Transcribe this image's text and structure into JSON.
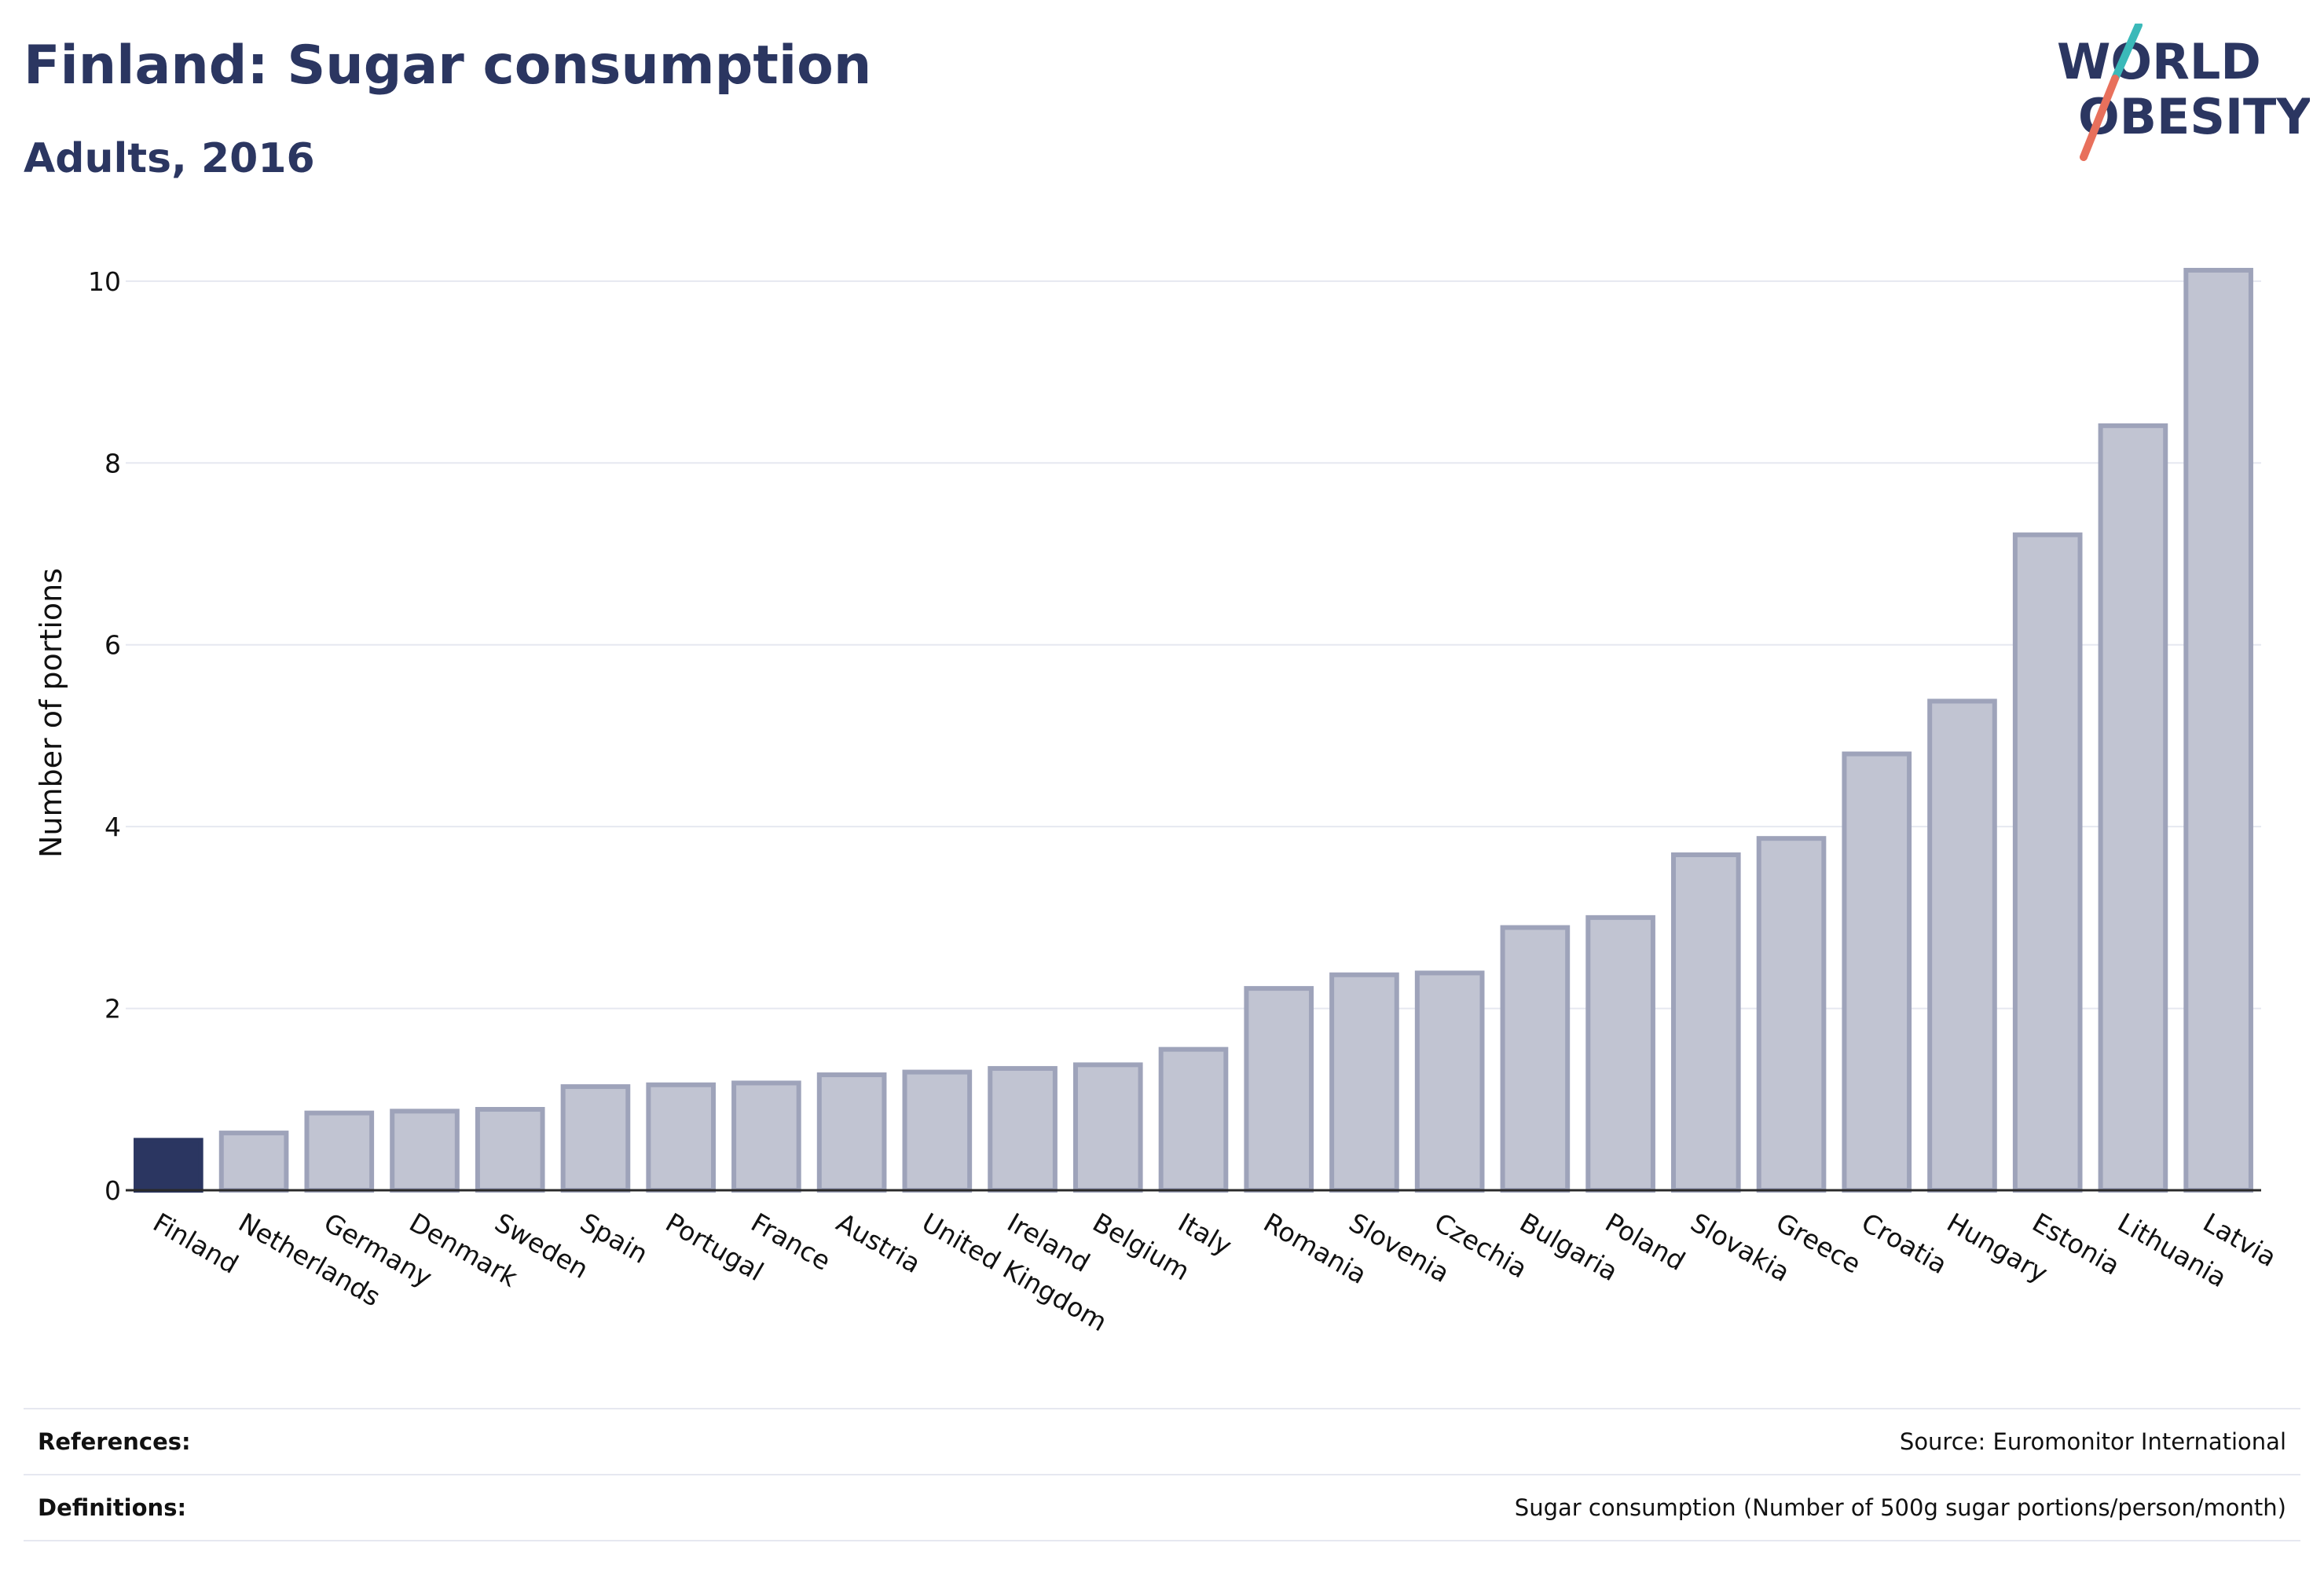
{
  "header": {
    "title": "Finland: Sugar consumption",
    "subtitle": "Adults, 2016"
  },
  "logo": {
    "line1": "WORLD",
    "line2": "OBESITY",
    "text_color": "#2b3661",
    "accent_teal": "#3bb9b9",
    "accent_coral": "#e8705c"
  },
  "footer": {
    "references_label": "References:",
    "references_value": "Source: Euromonitor International",
    "definitions_label": "Definitions:",
    "definitions_value": "Sugar consumption (Number of 500g sugar portions/person/month)"
  },
  "chart_data": {
    "type": "bar",
    "title": "Finland: Sugar consumption",
    "subtitle": "Adults, 2016",
    "xlabel": "",
    "ylabel": "Number of portions",
    "ylim": [
      0,
      10.5
    ],
    "yticks": [
      0,
      2,
      4,
      6,
      8,
      10
    ],
    "grid": true,
    "highlight_category": "Finland",
    "colors": {
      "highlight": "#2b3661",
      "bar_fill": "#c1c4d2",
      "bar_stroke": "#9ea3ba",
      "grid": "#e6e8f0",
      "axis": "#2a2a2a"
    },
    "categories": [
      "Finland",
      "Netherlands",
      "Germany",
      "Denmark",
      "Sweden",
      "Spain",
      "Portugal",
      "France",
      "Austria",
      "United Kingdom",
      "Ireland",
      "Belgium",
      "Italy",
      "Romania",
      "Slovenia",
      "Czechia",
      "Bulgaria",
      "Poland",
      "Slovakia",
      "Greece",
      "Croatia",
      "Hungary",
      "Estonia",
      "Lithuania",
      "Latvia"
    ],
    "values": [
      0.55,
      0.63,
      0.85,
      0.87,
      0.89,
      1.14,
      1.16,
      1.18,
      1.27,
      1.3,
      1.34,
      1.38,
      1.55,
      2.22,
      2.37,
      2.39,
      2.89,
      3.0,
      3.69,
      3.87,
      4.8,
      5.38,
      7.21,
      8.41,
      10.12
    ]
  }
}
